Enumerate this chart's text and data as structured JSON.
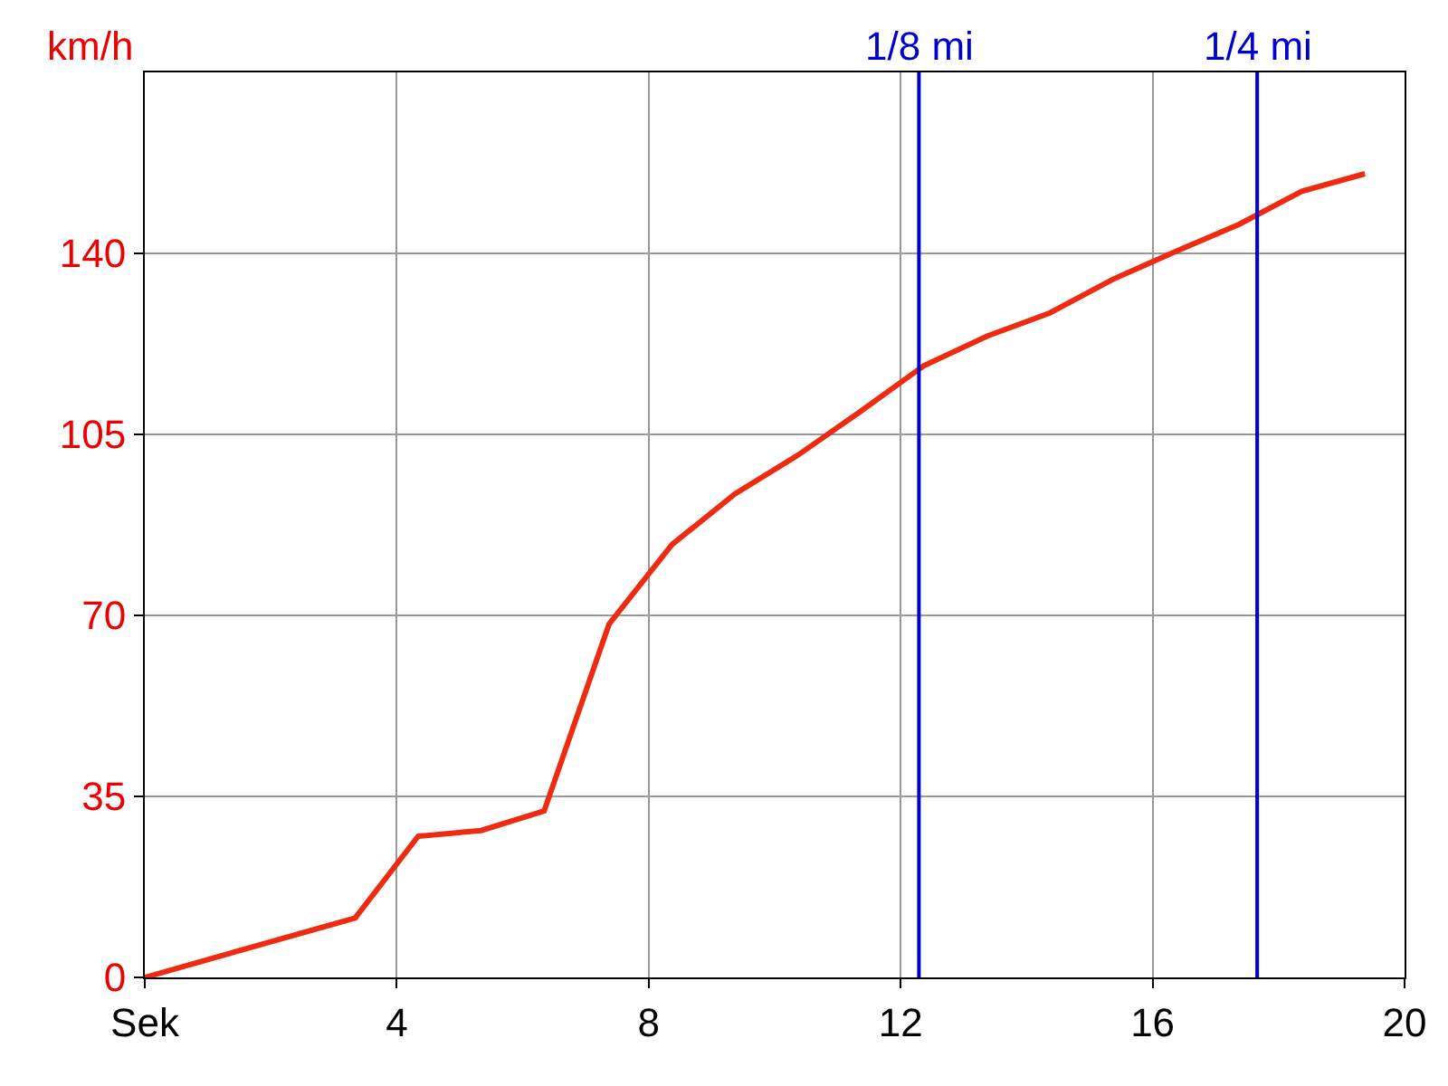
{
  "chart_data": {
    "type": "line",
    "ylabel": "km/h",
    "x": [
      0,
      3.34,
      4.34,
      5.34,
      6.34,
      7.37,
      8.37,
      9.37,
      10.37,
      11.37,
      12.37,
      13.37,
      14.37,
      15.37,
      16.37,
      17.37,
      18.37,
      19.37
    ],
    "series": [
      {
        "color": "#ee2a10",
        "values": [
          0,
          11.5,
          27.3,
          28.4,
          32.2,
          68.3,
          83.7,
          93.5,
          101,
          109.5,
          118.3,
          124,
          128.5,
          135,
          140.4,
          145.6,
          152,
          155.4
        ]
      }
    ],
    "xlim": [
      0,
      20
    ],
    "ylim": [
      0,
      175
    ],
    "xticks": [
      {
        "value": 0,
        "label": "Sek"
      },
      4,
      8,
      12,
      16,
      20
    ],
    "yticks": [
      0,
      35,
      70,
      105,
      140
    ],
    "ref_lines": [
      {
        "axis": "x",
        "value": 12.29,
        "label": "1/8 mi",
        "color": "#0000cc"
      },
      {
        "axis": "x",
        "value": 17.66,
        "label": "1/4 mi",
        "color": "#0000cc"
      }
    ],
    "grid": true,
    "legend": false,
    "marker": "none",
    "line_style": "solid"
  }
}
